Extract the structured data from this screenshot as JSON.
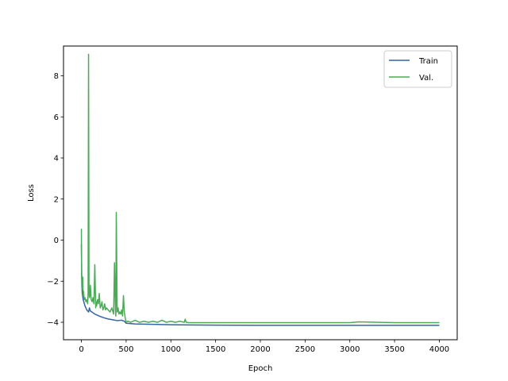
{
  "chart_data": {
    "type": "line",
    "title": "",
    "xlabel": "Epoch",
    "ylabel": "Loss",
    "xlim": [
      -200,
      4200
    ],
    "ylim": [
      -4.85,
      9.45
    ],
    "xticks": [
      0,
      500,
      1000,
      1500,
      2000,
      2500,
      3000,
      3500,
      4000
    ],
    "yticks": [
      -4,
      -2,
      0,
      2,
      4,
      6,
      8
    ],
    "grid": false,
    "legend_position": "top-right",
    "series": [
      {
        "name": "Train",
        "color": "#3465a4",
        "x": [
          0,
          5,
          10,
          20,
          40,
          60,
          80,
          90,
          100,
          150,
          200,
          250,
          300,
          350,
          400,
          450,
          480,
          490,
          500,
          600,
          800,
          1000,
          1200,
          1500,
          2000,
          2500,
          3000,
          3500,
          4000
        ],
        "y": [
          -0.2,
          -2.2,
          -2.6,
          -2.9,
          -3.2,
          -3.4,
          -3.5,
          -3.3,
          -3.45,
          -3.6,
          -3.7,
          -3.78,
          -3.84,
          -3.88,
          -3.92,
          -3.9,
          -3.95,
          -4.0,
          -4.05,
          -4.08,
          -4.1,
          -4.12,
          -4.13,
          -4.14,
          -4.15,
          -4.15,
          -4.15,
          -4.15,
          -4.15
        ]
      },
      {
        "name": "Val.",
        "color": "#4daa57",
        "x": [
          0,
          2,
          5,
          10,
          15,
          20,
          25,
          30,
          40,
          50,
          60,
          70,
          75,
          80,
          85,
          90,
          95,
          100,
          110,
          120,
          130,
          140,
          150,
          160,
          165,
          170,
          180,
          190,
          200,
          210,
          220,
          230,
          240,
          250,
          260,
          270,
          280,
          300,
          320,
          340,
          360,
          370,
          380,
          385,
          390,
          400,
          410,
          420,
          430,
          440,
          450,
          460,
          470,
          480,
          490,
          500,
          520,
          550,
          600,
          650,
          700,
          750,
          800,
          850,
          900,
          950,
          1000,
          1050,
          1100,
          1150,
          1160,
          1170,
          1200,
          1300,
          1500,
          2000,
          2500,
          3000,
          3100,
          3500,
          4000
        ],
        "y": [
          0.55,
          -1.7,
          -2.0,
          -2.4,
          -1.8,
          -2.7,
          -2.5,
          -2.9,
          -2.8,
          -3.0,
          -2.9,
          -3.1,
          -2.6,
          9.05,
          -2.5,
          -2.8,
          -2.7,
          -2.2,
          -2.9,
          -3.0,
          -2.8,
          -3.1,
          -1.2,
          -3.3,
          -3.0,
          -3.2,
          -2.9,
          -3.1,
          -2.6,
          -3.3,
          -3.2,
          -3.0,
          -3.4,
          -3.3,
          -3.1,
          -3.4,
          -3.3,
          -3.4,
          -3.5,
          -3.3,
          -3.6,
          -1.1,
          -3.4,
          -3.7,
          1.35,
          -3.5,
          -3.3,
          -3.6,
          -3.5,
          -3.6,
          -3.4,
          -3.7,
          -2.7,
          -3.5,
          -3.8,
          -4.0,
          -3.95,
          -4.0,
          -3.9,
          -4.0,
          -3.95,
          -4.0,
          -3.95,
          -4.0,
          -3.9,
          -4.0,
          -3.95,
          -4.0,
          -3.95,
          -4.0,
          -3.85,
          -4.0,
          -4.02,
          -4.02,
          -4.02,
          -4.02,
          -4.02,
          -4.02,
          -3.98,
          -4.02,
          -4.02
        ]
      }
    ]
  }
}
